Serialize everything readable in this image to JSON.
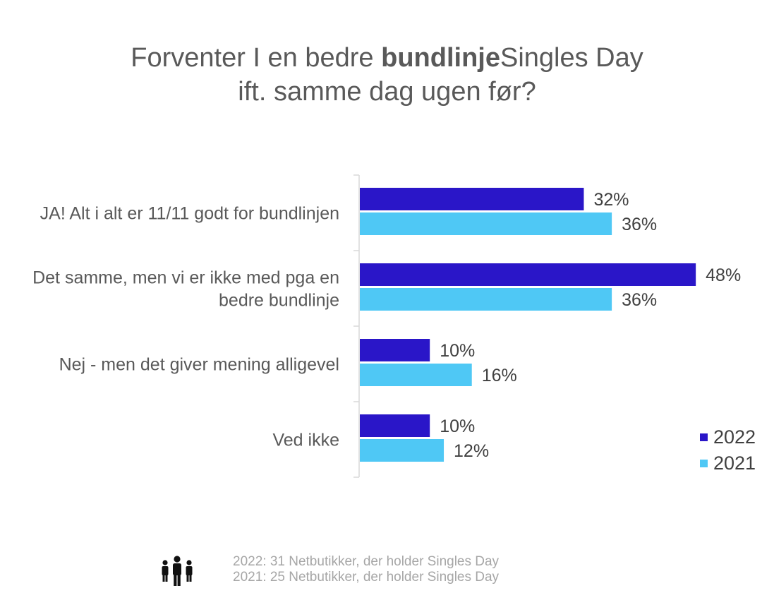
{
  "title": {
    "part1": "Forventer I en bedre ",
    "bold": "bundlinje",
    "part2": "Singles Day",
    "line2": "ift. samme dag ugen før?"
  },
  "chart_data": {
    "type": "bar",
    "orientation": "horizontal",
    "categories": [
      [
        "JA! Alt i alt er 11/11 godt for bundlinjen"
      ],
      [
        "Det samme, men vi er ikke med pga en",
        "bedre bundlinje"
      ],
      [
        "Nej - men det giver mening alligevel"
      ],
      [
        "Ved ikke"
      ]
    ],
    "series": [
      {
        "name": "2022",
        "color": "#2a16c8",
        "values": [
          32,
          48,
          10,
          10
        ]
      },
      {
        "name": "2021",
        "color": "#4fc8f5",
        "values": [
          36,
          36,
          16,
          12
        ]
      }
    ],
    "value_suffix": "%",
    "xlim": [
      0,
      100
    ],
    "grid": false,
    "legend_position": "bottom-right"
  },
  "footer": {
    "icon": "people-group-icon",
    "note_2022": "2022: 31 Netbutikker, der holder Singles Day",
    "note_2021": "2021: 25 Netbutikker, der holder Singles Day"
  }
}
